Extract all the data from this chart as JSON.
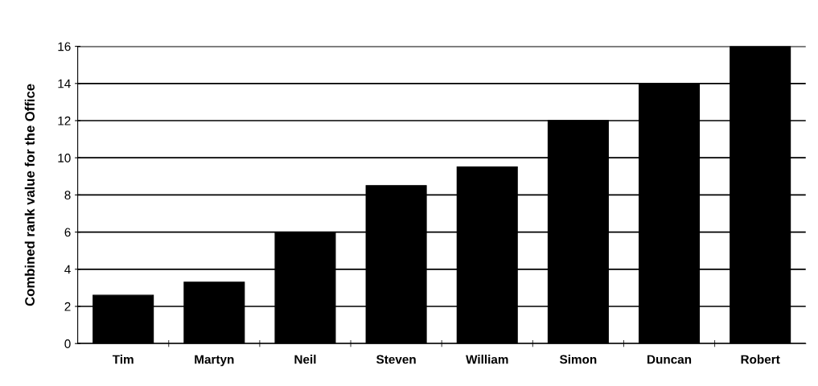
{
  "chart_data": {
    "type": "bar",
    "ylabel": "Combined rank value for the Office",
    "categories": [
      "Tim",
      "Martyn",
      "Neil",
      "Steven",
      "William",
      "Simon",
      "Duncan",
      "Robert"
    ],
    "values": [
      2.6,
      3.3,
      6,
      8.5,
      9.5,
      12,
      14,
      16
    ],
    "color": "#000000",
    "ylim": [
      0,
      16
    ],
    "yticks": [
      0,
      2,
      4,
      6,
      8,
      10,
      12,
      14,
      16
    ],
    "grid": "y"
  }
}
